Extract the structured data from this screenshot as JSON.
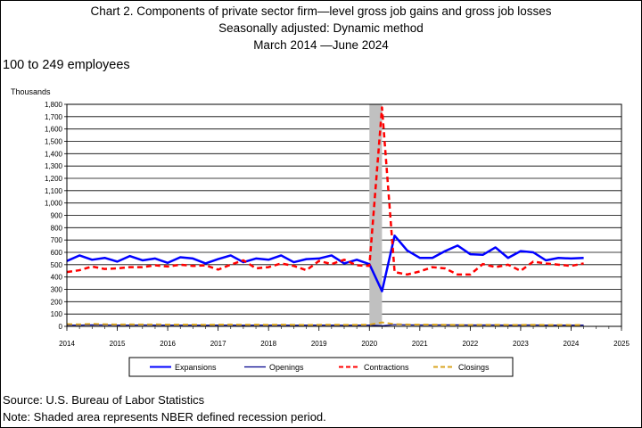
{
  "header": {
    "title_line1": "Chart 2. Components of private sector firm—level gross job gains and gross job losses",
    "title_line2": "Seasonally adjusted: Dynamic method",
    "title_line3": "March 2014  —June 2024",
    "size_class": "100 to 249 employees",
    "y_unit": "Thousands"
  },
  "footer": {
    "source": "Source: U.S. Bureau of Labor Statistics",
    "note": "Note: Shaded area represents NBER defined recession period."
  },
  "chart_data": {
    "type": "line",
    "title": "Chart 2. Components of private sector firm—level gross job gains and gross job losses",
    "ylabel": "Thousands",
    "xlim": [
      2014,
      2025
    ],
    "ylim": [
      0,
      1800
    ],
    "y_ticks": [
      0,
      100,
      200,
      300,
      400,
      500,
      600,
      700,
      800,
      900,
      "1,000",
      "1,100",
      "1,200",
      "1,300",
      "1,400",
      "1,500",
      "1,600",
      "1,700",
      "1,800"
    ],
    "x_ticks": [
      "2014",
      "2015",
      "2016",
      "2017",
      "2018",
      "2019",
      "2020",
      "2021",
      "2022",
      "2023",
      "2024",
      "2025"
    ],
    "grid": true,
    "legend_position": "bottom",
    "recession": {
      "start": 2020.0,
      "end": 2020.25,
      "color": "#c0c0c0"
    },
    "x": [
      2014.0,
      2014.25,
      2014.5,
      2014.75,
      2015.0,
      2015.25,
      2015.5,
      2015.75,
      2016.0,
      2016.25,
      2016.5,
      2016.75,
      2017.0,
      2017.25,
      2017.5,
      2017.75,
      2018.0,
      2018.25,
      2018.5,
      2018.75,
      2019.0,
      2019.25,
      2019.5,
      2019.75,
      2020.0,
      2020.25,
      2020.5,
      2020.75,
      2021.0,
      2021.25,
      2021.5,
      2021.75,
      2022.0,
      2022.25,
      2022.5,
      2022.75,
      2023.0,
      2023.25,
      2023.5,
      2023.75,
      2024.0,
      2024.25
    ],
    "series": [
      {
        "name": "Expansions",
        "color": "#0000ff",
        "dash": "solid",
        "width": 2.5,
        "values": [
          530,
          575,
          540,
          555,
          525,
          570,
          535,
          550,
          515,
          560,
          550,
          510,
          545,
          575,
          520,
          550,
          540,
          575,
          520,
          545,
          550,
          575,
          510,
          540,
          505,
          285,
          735,
          615,
          555,
          555,
          610,
          655,
          585,
          580,
          640,
          555,
          610,
          600,
          535,
          555,
          550,
          555
        ]
      },
      {
        "name": "Openings",
        "color": "#00008b",
        "dash": "solid",
        "width": 1.2,
        "values": [
          10,
          10,
          12,
          11,
          10,
          10,
          11,
          10,
          10,
          10,
          10,
          9,
          10,
          10,
          9,
          10,
          10,
          10,
          9,
          10,
          10,
          10,
          9,
          10,
          10,
          5,
          14,
          12,
          11,
          11,
          12,
          12,
          11,
          11,
          11,
          10,
          11,
          11,
          10,
          10,
          10,
          10
        ]
      },
      {
        "name": "Contractions",
        "color": "#ff0000",
        "dash": "dashed",
        "width": 2.5,
        "values": [
          440,
          455,
          485,
          465,
          470,
          480,
          480,
          495,
          485,
          500,
          490,
          495,
          460,
          500,
          535,
          470,
          480,
          510,
          490,
          455,
          530,
          505,
          540,
          495,
          490,
          1775,
          440,
          420,
          445,
          480,
          470,
          420,
          420,
          505,
          480,
          500,
          450,
          525,
          510,
          500,
          490,
          510
        ]
      },
      {
        "name": "Closings",
        "color": "#daa520",
        "dash": "dashed",
        "width": 2,
        "values": [
          18,
          16,
          20,
          17,
          15,
          16,
          15,
          16,
          14,
          15,
          14,
          13,
          14,
          15,
          13,
          14,
          13,
          14,
          13,
          12,
          13,
          14,
          13,
          13,
          14,
          32,
          18,
          15,
          14,
          14,
          13,
          12,
          12,
          13,
          13,
          12,
          12,
          13,
          12,
          12,
          11,
          12
        ]
      }
    ]
  }
}
